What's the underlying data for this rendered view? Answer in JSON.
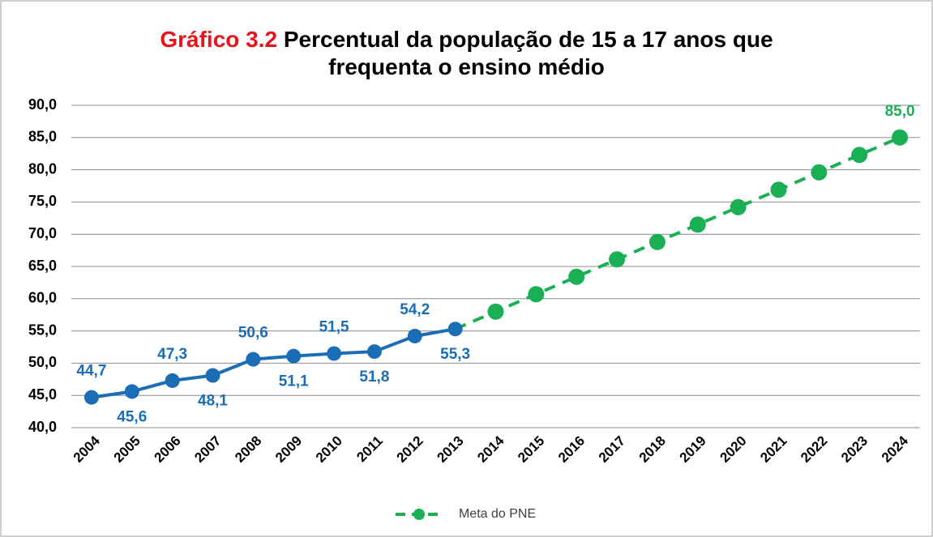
{
  "chart_data": {
    "type": "line",
    "title_label": "Gráfico 3.2",
    "title": "Percentual da população de 15 a 17 anos que frequenta o ensino médio",
    "categories": [
      "2004",
      "2005",
      "2006",
      "2007",
      "2008",
      "2009",
      "2010",
      "2011",
      "2012",
      "2013",
      "2014",
      "2015",
      "2016",
      "2017",
      "2018",
      "2019",
      "2020",
      "2021",
      "2022",
      "2023",
      "2024"
    ],
    "series": [
      {
        "color": "#1b6db5",
        "dashed": false,
        "values": [
          44.7,
          45.6,
          47.3,
          48.1,
          50.6,
          51.1,
          51.5,
          51.8,
          54.2,
          55.3,
          null,
          null,
          null,
          null,
          null,
          null,
          null,
          null,
          null,
          null,
          null
        ],
        "value_labels": [
          "44,7",
          "45,6",
          "47,3",
          "48,1",
          "50,6",
          "51,1",
          "51,5",
          "51,8",
          "54,2",
          "55,3",
          null,
          null,
          null,
          null,
          null,
          null,
          null,
          null,
          null,
          null,
          null
        ]
      },
      {
        "name": "Meta do PNE",
        "color": "#1aae55",
        "dashed": true,
        "values": [
          null,
          null,
          null,
          null,
          null,
          null,
          null,
          null,
          null,
          55.3,
          58.0,
          60.7,
          63.4,
          66.1,
          68.8,
          71.5,
          74.2,
          76.9,
          79.6,
          82.3,
          85.0
        ],
        "value_labels": [
          null,
          null,
          null,
          null,
          null,
          null,
          null,
          null,
          null,
          null,
          null,
          null,
          null,
          null,
          null,
          null,
          null,
          null,
          null,
          null,
          "85,0"
        ]
      }
    ],
    "ylim": [
      40,
      90
    ],
    "yticks": [
      {
        "value": 40,
        "label": "40,0"
      },
      {
        "value": 45,
        "label": "45,0"
      },
      {
        "value": 50,
        "label": "50,0"
      },
      {
        "value": 55,
        "label": "55,0"
      },
      {
        "value": 60,
        "label": "60,0"
      },
      {
        "value": 65,
        "label": "65,0"
      },
      {
        "value": 70,
        "label": "70,0"
      },
      {
        "value": 75,
        "label": "75,0"
      },
      {
        "value": 80,
        "label": "80,0"
      },
      {
        "value": 85,
        "label": "85,0"
      },
      {
        "value": 90,
        "label": "90,0"
      }
    ],
    "grid": true,
    "legend": "bottom"
  }
}
